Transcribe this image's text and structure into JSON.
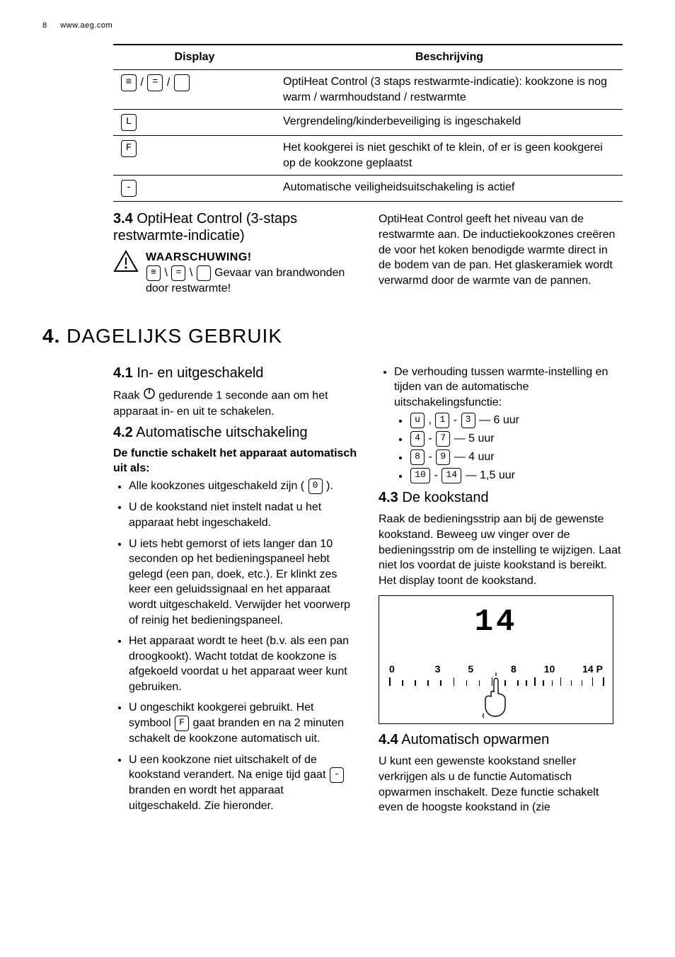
{
  "header": {
    "page_number": "8",
    "url": "www.aeg.com"
  },
  "table": {
    "col_display": "Display",
    "col_desc": "Beschrijving",
    "rows": [
      {
        "display_glyphs": [
          "≡",
          "=",
          " "
        ],
        "separator": "/",
        "desc": "OptiHeat Control (3 staps restwarmte-indicatie): kookzone is nog warm / warmhoudstand / restwarmte"
      },
      {
        "display_glyphs": [
          "L"
        ],
        "desc": "Vergrendeling/kinderbeveiliging is ingeschakeld"
      },
      {
        "display_glyphs": [
          "F"
        ],
        "desc": "Het kookgerei is niet geschikt of te klein, of er is geen kookgerei op de kookzone geplaatst"
      },
      {
        "display_glyphs": [
          "-"
        ],
        "desc": "Automatische veiligheidsuitschakeling is actief"
      }
    ]
  },
  "sec34": {
    "num": "3.4",
    "title": "OptiHeat Control (3-staps restwarmte-indicatie)",
    "warn_title": "WAARSCHUWING!",
    "warn_glyphs": [
      "≡",
      "=",
      " "
    ],
    "warn_sep": "\\",
    "warn_rest": " Gevaar van brandwonden door restwarmte!",
    "right_para": "OptiHeat Control geeft het niveau van de restwarmte aan. De inductiekookzones creëren de voor het koken benodigde warmte direct in de bodem van de pan. Het glaskeramiek wordt verwarmd door de warmte van de pannen."
  },
  "sec4": {
    "num": "4.",
    "title": "DAGELIJKS GEBRUIK"
  },
  "sec41": {
    "num": "4.1",
    "title": "In- en uitgeschakeld",
    "body_pre": "Raak ",
    "body_post": " gedurende 1 seconde aan om het apparaat in- en uit te schakelen."
  },
  "sec42": {
    "num": "4.2",
    "title": "Automatische uitschakeling",
    "sub_bold": "De functie schakelt het apparaat automatisch uit als:",
    "bullets": [
      {
        "pre": "Alle kookzones uitgeschakeld zijn ( ",
        "glyph": "0",
        "post": " )."
      },
      {
        "text": "U de kookstand niet instelt nadat u het apparaat hebt ingeschakeld."
      },
      {
        "text": "U iets hebt gemorst of iets langer dan 10 seconden op het bedieningspaneel hebt gelegd (een pan, doek, etc.). Er klinkt zes keer een geluidssignaal en het apparaat wordt uitgeschakeld. Verwijder het voorwerp of reinig het bedieningspaneel."
      },
      {
        "text": "Het apparaat wordt te heet (b.v. als een pan droogkookt). Wacht totdat de kookzone is afgekoeld voordat u het apparaat weer kunt gebruiken."
      },
      {
        "pre": "U ongeschikt kookgerei gebruikt. Het symbool ",
        "glyph": "F",
        "post": " gaat branden en na 2 minuten schakelt de kookzone automatisch uit."
      },
      {
        "pre": "U een kookzone niet uitschakelt of de kookstand verandert. Na enige tijd gaat ",
        "glyph": "-",
        "post": " branden en wordt het apparaat uitgeschakeld. Zie hieronder."
      }
    ]
  },
  "sec42_right": {
    "lead": "De verhouding tussen warmte-instelling en tijden van de automatische uitschakelingsfunctie:",
    "items": [
      {
        "glyphs": [
          "u"
        ],
        "comma": " , ",
        "glyphs2": [
          "1"
        ],
        "dash": " - ",
        "glyphs3": [
          "3"
        ],
        "tail": " — 6 uur"
      },
      {
        "glyphs": [
          "4"
        ],
        "dash": " - ",
        "glyphs2": [
          "7"
        ],
        "tail": " — 5 uur"
      },
      {
        "glyphs": [
          "8"
        ],
        "dash": " - ",
        "glyphs2": [
          "9"
        ],
        "tail": " — 4 uur"
      },
      {
        "glyphs": [
          "10"
        ],
        "dash": " - ",
        "glyphs2": [
          "14"
        ],
        "tail": " — 1,5 uur"
      }
    ]
  },
  "sec43": {
    "num": "4.3",
    "title": "De kookstand",
    "body": "Raak de bedieningsstrip aan bij de gewenste kookstand. Beweeg uw vinger over de bedieningsstrip om de instelling te wijzigen. Laat niet los voordat de juiste kookstand is bereikt. Het display toont de kookstand."
  },
  "slider": {
    "big_digits": "14",
    "labels": [
      "0",
      "3",
      "5",
      "8",
      "10",
      "14 P"
    ],
    "tick_positions_pct": [
      0,
      6,
      12,
      18,
      24,
      30,
      36,
      42,
      48,
      54,
      60,
      64,
      68,
      72,
      76,
      80,
      85,
      90,
      95,
      100
    ],
    "tick_tall_pct": [
      0,
      30,
      48,
      68,
      80,
      95,
      100
    ]
  },
  "sec44": {
    "num": "4.4",
    "title": "Automatisch opwarmen",
    "body": "U kunt een gewenste kookstand sneller verkrijgen als u de functie Automatisch opwarmen inschakelt. Deze functie schakelt even de hoogste kookstand in (zie"
  }
}
